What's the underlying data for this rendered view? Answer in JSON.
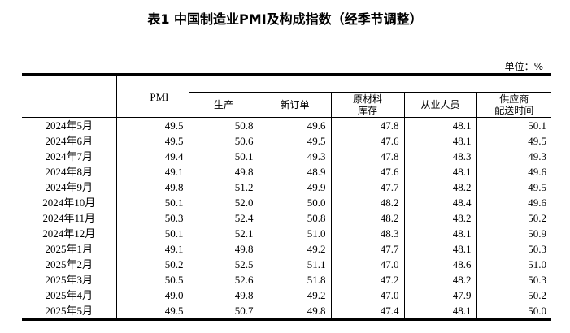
{
  "title": "表1 中国制造业PMI及构成指数（经季节调整）",
  "unit": "单位：%",
  "columns": [
    "PMI",
    "生产",
    "新订单",
    "原材料\n库存",
    "从业人员",
    "供应商\n配送时间"
  ],
  "rows": [
    {
      "month": "2024年5月",
      "values": [
        "49.5",
        "50.8",
        "49.6",
        "47.8",
        "48.1",
        "50.1"
      ]
    },
    {
      "month": "2024年6月",
      "values": [
        "49.5",
        "50.6",
        "49.5",
        "47.6",
        "48.1",
        "49.5"
      ]
    },
    {
      "month": "2024年7月",
      "values": [
        "49.4",
        "50.1",
        "49.3",
        "47.8",
        "48.3",
        "49.3"
      ]
    },
    {
      "month": "2024年8月",
      "values": [
        "49.1",
        "49.8",
        "48.9",
        "47.6",
        "48.1",
        "49.6"
      ]
    },
    {
      "month": "2024年9月",
      "values": [
        "49.8",
        "51.2",
        "49.9",
        "47.7",
        "48.2",
        "49.5"
      ]
    },
    {
      "month": "2024年10月",
      "values": [
        "50.1",
        "52.0",
        "50.0",
        "48.2",
        "48.4",
        "49.6"
      ]
    },
    {
      "month": "2024年11月",
      "values": [
        "50.3",
        "52.4",
        "50.8",
        "48.2",
        "48.2",
        "50.2"
      ]
    },
    {
      "month": "2024年12月",
      "values": [
        "50.1",
        "52.1",
        "51.0",
        "48.3",
        "48.1",
        "50.9"
      ]
    },
    {
      "month": "2025年1月",
      "values": [
        "49.1",
        "49.8",
        "49.2",
        "47.7",
        "48.1",
        "50.3"
      ]
    },
    {
      "month": "2025年2月",
      "values": [
        "50.2",
        "52.5",
        "51.1",
        "47.0",
        "48.6",
        "51.0"
      ]
    },
    {
      "month": "2025年3月",
      "values": [
        "50.5",
        "52.6",
        "51.8",
        "47.2",
        "48.2",
        "50.3"
      ]
    },
    {
      "month": "2025年4月",
      "values": [
        "49.0",
        "49.8",
        "49.2",
        "47.0",
        "47.9",
        "50.2"
      ]
    },
    {
      "month": "2025年5月",
      "values": [
        "49.5",
        "50.7",
        "49.8",
        "47.4",
        "48.1",
        "50.0"
      ]
    }
  ]
}
